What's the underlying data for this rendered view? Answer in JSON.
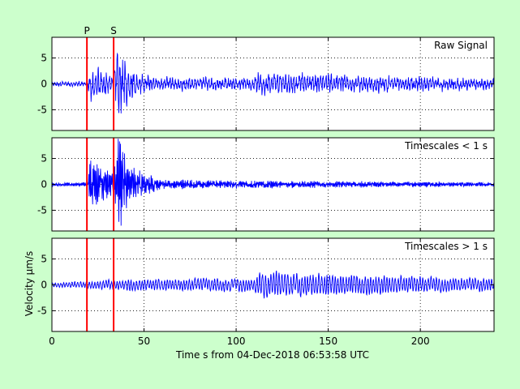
{
  "figure": {
    "background": "#ccffcc",
    "xlabel": "Time s from 04-Dec-2018 06:53:58 UTC",
    "ylabel": "Velocity μm/s"
  },
  "chart_data": [
    {
      "type": "line",
      "panel_label": "Raw Signal",
      "xlim": [
        0,
        240
      ],
      "ylim": [
        -9,
        9
      ],
      "xticks": [
        0,
        50,
        100,
        150,
        200
      ],
      "xtick_labels_shown": false,
      "yticks": [
        -5,
        0,
        5
      ],
      "grid": true,
      "series_color": "#0000ff",
      "noise": {
        "base": 0.45,
        "lowfreq": 0.7,
        "hf": 0.5
      },
      "markers": [
        {
          "label": "P",
          "x": 19,
          "color": "#ff0000"
        },
        {
          "label": "S",
          "x": 33.5,
          "color": "#ff0000"
        }
      ],
      "envelope_samples": [
        {
          "t": 0,
          "amp": 0.6
        },
        {
          "t": 19,
          "amp": 0.6
        },
        {
          "t": 21,
          "amp": 4.5
        },
        {
          "t": 33,
          "amp": 2.0
        },
        {
          "t": 36,
          "amp": 8.5
        },
        {
          "t": 42,
          "amp": 3.5
        },
        {
          "t": 55,
          "amp": 1.5
        },
        {
          "t": 110,
          "amp": 1.5
        },
        {
          "t": 112,
          "amp": 2.5
        },
        {
          "t": 240,
          "amp": 1.2
        }
      ]
    },
    {
      "type": "line",
      "panel_label": "Timescales < 1 s",
      "xlim": [
        0,
        240
      ],
      "ylim": [
        -9,
        9
      ],
      "xticks": [
        0,
        50,
        100,
        150,
        200
      ],
      "xtick_labels_shown": false,
      "yticks": [
        -5,
        0,
        5
      ],
      "grid": true,
      "series_color": "#0000ff",
      "noise": {
        "base": 0.45,
        "lowfreq": 0.0,
        "hf": 1.0
      },
      "markers": [
        {
          "label": "",
          "x": 19,
          "color": "#ff0000"
        },
        {
          "label": "",
          "x": 33.5,
          "color": "#ff0000"
        }
      ],
      "envelope_samples": [
        {
          "t": 0,
          "amp": 0.35
        },
        {
          "t": 19,
          "amp": 0.35
        },
        {
          "t": 21,
          "amp": 4.5
        },
        {
          "t": 33,
          "amp": 2.0
        },
        {
          "t": 36,
          "amp": 8.5
        },
        {
          "t": 42,
          "amp": 3.0
        },
        {
          "t": 60,
          "amp": 0.8
        },
        {
          "t": 240,
          "amp": 0.35
        }
      ]
    },
    {
      "type": "line",
      "panel_label": "Timescales > 1 s",
      "xlim": [
        0,
        240
      ],
      "ylim": [
        -9,
        9
      ],
      "xticks": [
        0,
        50,
        100,
        150,
        200
      ],
      "xtick_labels_shown": true,
      "yticks": [
        -5,
        0,
        5
      ],
      "grid": true,
      "series_color": "#0000ff",
      "noise": {
        "base": 0.3,
        "lowfreq": 1.0,
        "hf": 0.0
      },
      "markers": [
        {
          "label": "",
          "x": 19,
          "color": "#ff0000"
        },
        {
          "label": "",
          "x": 33.5,
          "color": "#ff0000"
        }
      ],
      "envelope_samples": [
        {
          "t": 0,
          "amp": 0.4
        },
        {
          "t": 40,
          "amp": 1.0
        },
        {
          "t": 110,
          "amp": 1.2
        },
        {
          "t": 112,
          "amp": 2.4
        },
        {
          "t": 240,
          "amp": 1.1
        }
      ]
    }
  ]
}
